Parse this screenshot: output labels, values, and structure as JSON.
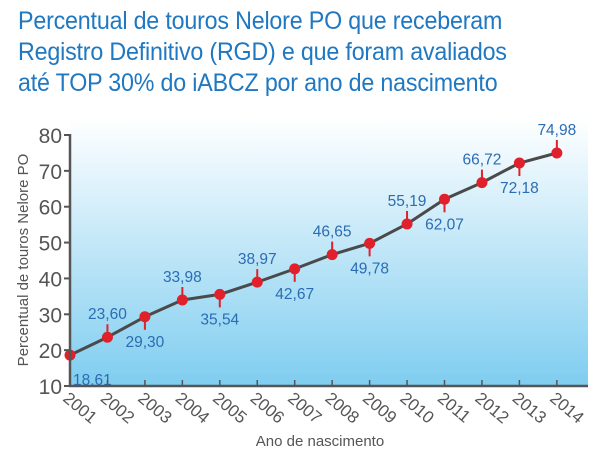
{
  "title_lines": [
    "Percentual de touros Nelore PO que receberam",
    "Registro Definitivo (RGD) e que foram avaliados",
    "até TOP 30% do iABCZ por ano de nascimento"
  ],
  "colors": {
    "title": "#1f78c1",
    "label": "#2b6cb3",
    "marker": "#e0202a",
    "line": "#4a4a4a",
    "axis": "#555555",
    "bg_top": "#ffffff",
    "bg_bottom": "#7fcdf0"
  },
  "chart_data": {
    "type": "line",
    "title": "Percentual de touros Nelore PO que receberam Registro Definitivo (RGD) e que foram avaliados até TOP 30% do iABCZ por ano de nascimento",
    "xlabel": "Ano de nascimento",
    "ylabel": "Percentual de touros Nelore PO",
    "ylim": [
      10,
      80
    ],
    "yticks": [
      "10",
      "20",
      "30",
      "40",
      "50",
      "60",
      "70",
      "80"
    ],
    "categories": [
      "2001",
      "2002",
      "2003",
      "2004",
      "2005",
      "2006",
      "2007",
      "2008",
      "2009",
      "2010",
      "2011",
      "2012",
      "2013",
      "2014"
    ],
    "values": [
      18.61,
      23.6,
      29.3,
      33.98,
      35.54,
      38.97,
      42.67,
      46.65,
      49.78,
      55.19,
      62.07,
      66.72,
      72.18,
      74.98
    ],
    "data_labels": [
      "18,61",
      "23,60",
      "29,30",
      "33,98",
      "35,54",
      "38,97",
      "42,67",
      "46,65",
      "49,78",
      "55,19",
      "62,07",
      "66,72",
      "72,18",
      "74,98"
    ],
    "label_positions": [
      "below",
      "above",
      "below",
      "above",
      "below",
      "above",
      "below",
      "above",
      "below",
      "above",
      "below",
      "above",
      "below",
      "above"
    ],
    "grid": false
  }
}
